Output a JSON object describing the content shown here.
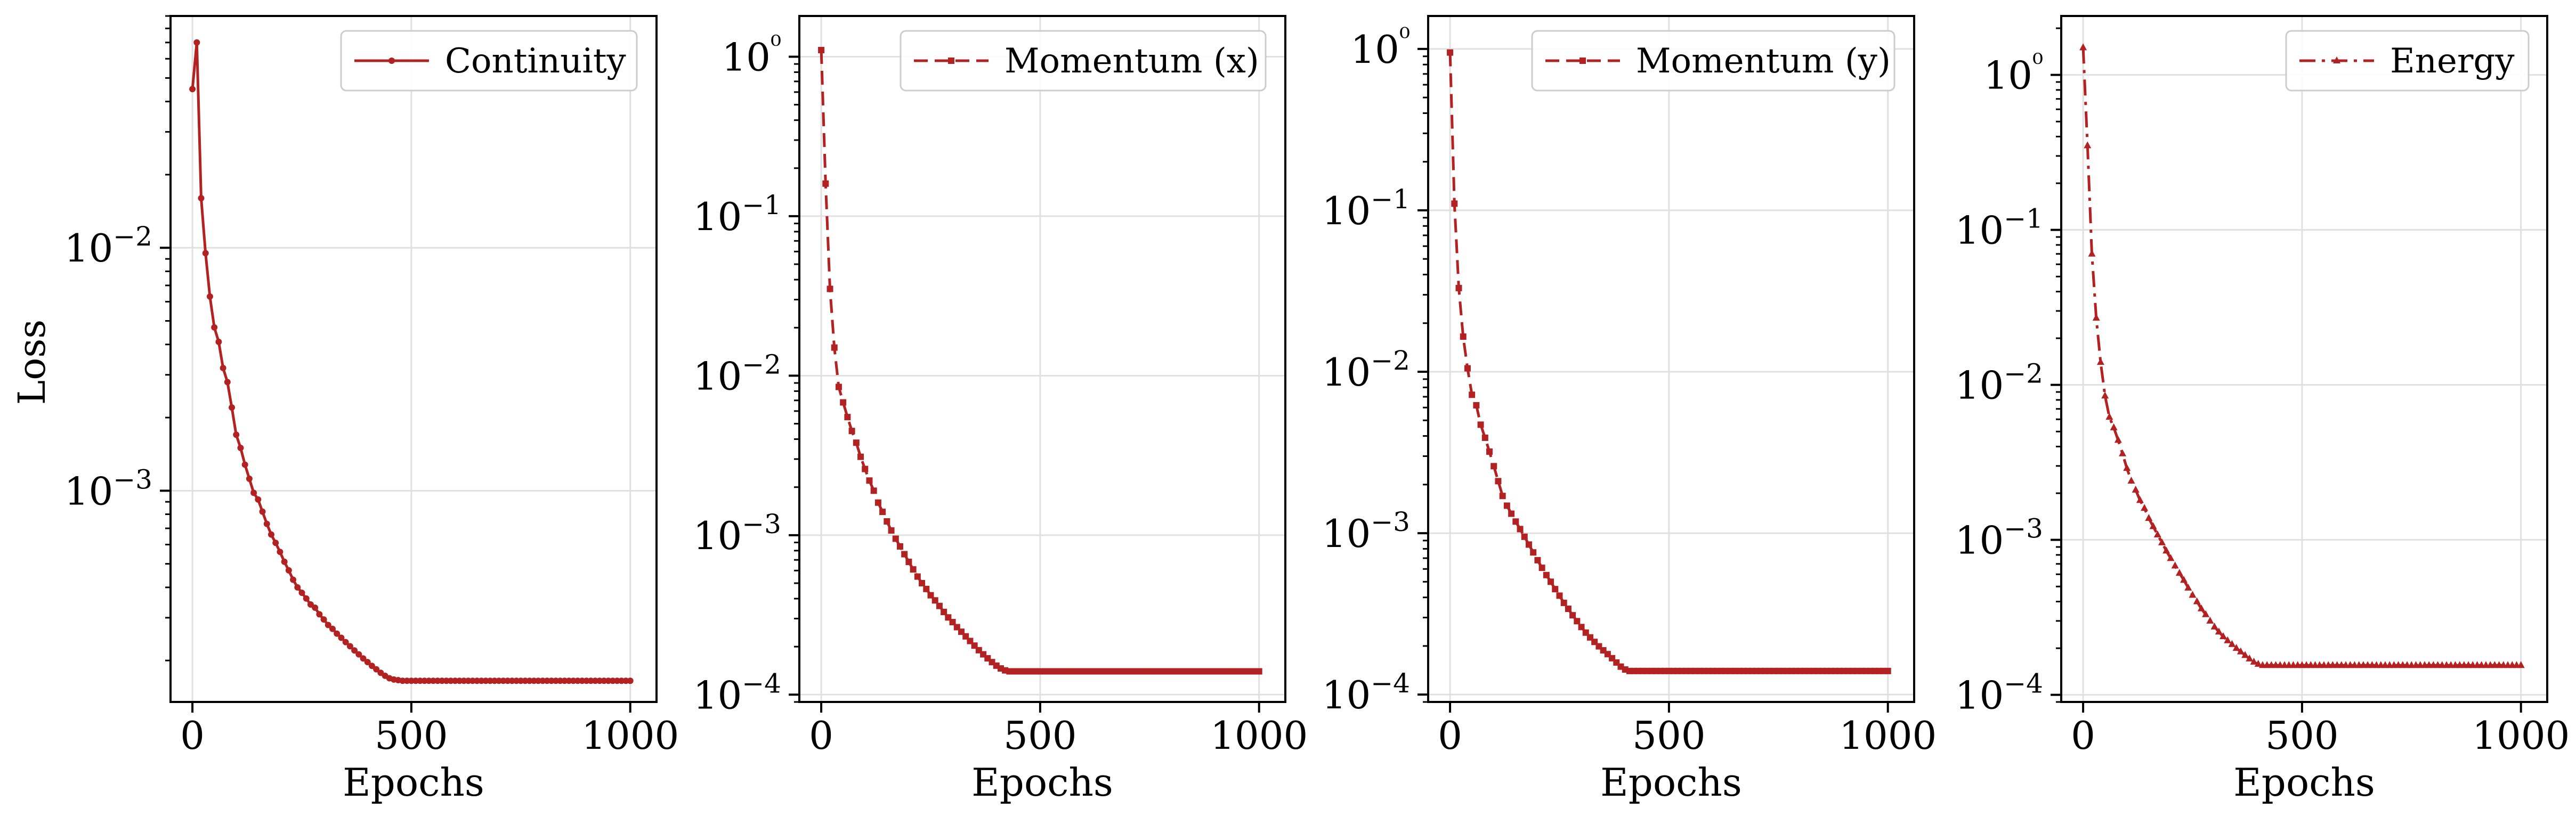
{
  "figure": {
    "colors": {
      "series": "#b22222",
      "grid": "#e0e0e0",
      "axis": "#000000"
    },
    "ylabel": "Loss",
    "xlabel": "Epochs",
    "xticks": [
      0,
      500,
      1000
    ]
  },
  "chart_data": [
    {
      "type": "line",
      "series": [
        {
          "name": "Continuity",
          "line_style": "solid",
          "marker": "circle",
          "x": [
            0,
            10,
            20,
            30,
            40,
            50,
            60,
            70,
            80,
            90,
            100,
            110,
            120,
            130,
            140,
            150,
            160,
            170,
            180,
            190,
            200,
            210,
            220,
            230,
            240,
            250,
            260,
            270,
            280,
            290,
            300,
            310,
            320,
            330,
            340,
            350,
            360,
            370,
            380,
            390,
            400,
            410,
            420,
            430,
            440,
            450,
            460,
            470,
            480,
            490,
            500,
            510,
            520,
            530,
            540,
            550,
            560,
            570,
            580,
            590,
            600,
            610,
            620,
            630,
            640,
            650,
            660,
            670,
            680,
            690,
            700,
            710,
            720,
            730,
            740,
            750,
            760,
            770,
            780,
            790,
            800,
            810,
            820,
            830,
            840,
            850,
            860,
            870,
            880,
            890,
            900,
            910,
            920,
            930,
            940,
            950,
            960,
            970,
            980,
            990,
            1000
          ],
          "y": [
            0.045,
            0.07,
            0.016,
            0.0095,
            0.0063,
            0.0047,
            0.0041,
            0.0032,
            0.0028,
            0.0022,
            0.0017,
            0.0015,
            0.00128,
            0.00112,
            0.00098,
            0.00092,
            0.00082,
            0.00073,
            0.00066,
            0.00061,
            0.00056,
            0.00051,
            0.00047,
            0.00043,
            0.0004,
            0.00038,
            0.00036,
            0.00034,
            0.00033,
            0.00031,
            0.000295,
            0.00028,
            0.00027,
            0.000258,
            0.000248,
            0.000238,
            0.000229,
            0.00022,
            0.000212,
            0.000204,
            0.000197,
            0.00019,
            0.000184,
            0.000178,
            0.000173,
            0.000169,
            0.000167,
            0.000166,
            0.000165,
            0.000165,
            0.000165,
            0.000165,
            0.000165,
            0.000165,
            0.000165,
            0.000165,
            0.000165,
            0.000165,
            0.000165,
            0.000165,
            0.000165,
            0.000165,
            0.000165,
            0.000165,
            0.000165,
            0.000165,
            0.000165,
            0.000165,
            0.000165,
            0.000165,
            0.000165,
            0.000165,
            0.000165,
            0.000165,
            0.000165,
            0.000165,
            0.000165,
            0.000165,
            0.000165,
            0.000165,
            0.000165,
            0.000165,
            0.000165,
            0.000165,
            0.000165,
            0.000165,
            0.000165,
            0.000165,
            0.000165,
            0.000165,
            0.000165,
            0.000165,
            0.000165,
            0.000165,
            0.000165,
            0.000165,
            0.000165,
            0.000165,
            0.000165,
            0.000165,
            0.000165
          ]
        }
      ],
      "xlim": [
        -50,
        1060
      ],
      "ylim": [
        0.000135,
        0.09
      ],
      "yscale": "log",
      "yticks": [
        0.001,
        0.01
      ],
      "ytick_labels": [
        "10−3",
        "10−2"
      ],
      "ylabel": "Loss",
      "xlabel": "Epochs",
      "grid": true,
      "legend": "top-right"
    },
    {
      "type": "line",
      "series": [
        {
          "name": "Momentum (x)",
          "line_style": "dashed",
          "marker": "square",
          "x": [
            0,
            10,
            20,
            30,
            40,
            50,
            60,
            70,
            80,
            90,
            100,
            110,
            120,
            130,
            140,
            150,
            160,
            170,
            180,
            190,
            200,
            210,
            220,
            230,
            240,
            250,
            260,
            270,
            280,
            290,
            300,
            310,
            320,
            330,
            340,
            350,
            360,
            370,
            380,
            390,
            400,
            410,
            420,
            430,
            440,
            450,
            460,
            470,
            480,
            490,
            500,
            510,
            520,
            530,
            540,
            550,
            560,
            570,
            580,
            590,
            600,
            610,
            620,
            630,
            640,
            650,
            660,
            670,
            680,
            690,
            700,
            710,
            720,
            730,
            740,
            750,
            760,
            770,
            780,
            790,
            800,
            810,
            820,
            830,
            840,
            850,
            860,
            870,
            880,
            890,
            900,
            910,
            920,
            930,
            940,
            950,
            960,
            970,
            980,
            990,
            1000
          ],
          "y": [
            1.1,
            0.16,
            0.035,
            0.015,
            0.0085,
            0.0068,
            0.0055,
            0.0045,
            0.0038,
            0.0031,
            0.0026,
            0.0022,
            0.0019,
            0.0016,
            0.0014,
            0.00122,
            0.00107,
            0.00095,
            0.00085,
            0.00076,
            0.00068,
            0.00061,
            0.00055,
            0.0005,
            0.00046,
            0.00042,
            0.00039,
            0.00036,
            0.00033,
            0.000305,
            0.000285,
            0.000265,
            0.000248,
            0.000232,
            0.000217,
            0.000203,
            0.00019,
            0.000179,
            0.000169,
            0.00016,
            0.000152,
            0.000146,
            0.000142,
            0.00014,
            0.00014,
            0.00014,
            0.00014,
            0.00014,
            0.00014,
            0.00014,
            0.00014,
            0.00014,
            0.00014,
            0.00014,
            0.00014,
            0.00014,
            0.00014,
            0.00014,
            0.00014,
            0.00014,
            0.00014,
            0.00014,
            0.00014,
            0.00014,
            0.00014,
            0.00014,
            0.00014,
            0.00014,
            0.00014,
            0.00014,
            0.00014,
            0.00014,
            0.00014,
            0.00014,
            0.00014,
            0.00014,
            0.00014,
            0.00014,
            0.00014,
            0.00014,
            0.00014,
            0.00014,
            0.00014,
            0.00014,
            0.00014,
            0.00014,
            0.00014,
            0.00014,
            0.00014,
            0.00014,
            0.00014,
            0.00014,
            0.00014,
            0.00014,
            0.00014,
            0.00014,
            0.00014,
            0.00014,
            0.00014,
            0.00014,
            0.00014
          ]
        }
      ],
      "xlim": [
        -50,
        1060
      ],
      "ylim": [
        9e-05,
        1.8
      ],
      "yscale": "log",
      "yticks": [
        0.0001,
        0.001,
        0.01,
        0.1,
        1
      ],
      "ytick_labels": [
        "10−4",
        "10−3",
        "10−2",
        "10−1",
        "10⁰"
      ],
      "xlabel": "Epochs",
      "grid": true,
      "legend": "top-right"
    },
    {
      "type": "line",
      "series": [
        {
          "name": "Momentum (y)",
          "line_style": "dashed",
          "marker": "square",
          "x": [
            0,
            10,
            20,
            30,
            40,
            50,
            60,
            70,
            80,
            90,
            100,
            110,
            120,
            130,
            140,
            150,
            160,
            170,
            180,
            190,
            200,
            210,
            220,
            230,
            240,
            250,
            260,
            270,
            280,
            290,
            300,
            310,
            320,
            330,
            340,
            350,
            360,
            370,
            380,
            390,
            400,
            410,
            420,
            430,
            440,
            450,
            460,
            470,
            480,
            490,
            500,
            510,
            520,
            530,
            540,
            550,
            560,
            570,
            580,
            590,
            600,
            610,
            620,
            630,
            640,
            650,
            660,
            670,
            680,
            690,
            700,
            710,
            720,
            730,
            740,
            750,
            760,
            770,
            780,
            790,
            800,
            810,
            820,
            830,
            840,
            850,
            860,
            870,
            880,
            890,
            900,
            910,
            920,
            930,
            940,
            950,
            960,
            970,
            980,
            990,
            1000
          ],
          "y": [
            0.95,
            0.11,
            0.033,
            0.0165,
            0.0105,
            0.0072,
            0.0062,
            0.0047,
            0.0039,
            0.0032,
            0.0026,
            0.0021,
            0.0017,
            0.00148,
            0.00132,
            0.00118,
            0.00106,
            0.00095,
            0.00085,
            0.00076,
            0.00068,
            0.00061,
            0.00055,
            0.0005,
            0.00045,
            0.00041,
            0.00037,
            0.00034,
            0.00031,
            0.000285,
            0.000262,
            0.000242,
            0.000226,
            0.000212,
            0.000199,
            0.000188,
            0.000178,
            0.000168,
            0.000158,
            0.000149,
            0.000143,
            0.00014,
            0.00014,
            0.00014,
            0.00014,
            0.00014,
            0.00014,
            0.00014,
            0.00014,
            0.00014,
            0.00014,
            0.00014,
            0.00014,
            0.00014,
            0.00014,
            0.00014,
            0.00014,
            0.00014,
            0.00014,
            0.00014,
            0.00014,
            0.00014,
            0.00014,
            0.00014,
            0.00014,
            0.00014,
            0.00014,
            0.00014,
            0.00014,
            0.00014,
            0.00014,
            0.00014,
            0.00014,
            0.00014,
            0.00014,
            0.00014,
            0.00014,
            0.00014,
            0.00014,
            0.00014,
            0.00014,
            0.00014,
            0.00014,
            0.00014,
            0.00014,
            0.00014,
            0.00014,
            0.00014,
            0.00014,
            0.00014,
            0.00014,
            0.00014,
            0.00014,
            0.00014,
            0.00014,
            0.00014,
            0.00014,
            0.00014,
            0.00014,
            0.00014,
            0.00014
          ]
        }
      ],
      "xlim": [
        -50,
        1060
      ],
      "ylim": [
        9e-05,
        1.6
      ],
      "yscale": "log",
      "yticks": [
        0.0001,
        0.001,
        0.01,
        0.1,
        1
      ],
      "ytick_labels": [
        "10−4",
        "10−3",
        "10−2",
        "10−1",
        "10⁰"
      ],
      "xlabel": "Epochs",
      "grid": true,
      "legend": "top-right"
    },
    {
      "type": "line",
      "series": [
        {
          "name": "Energy",
          "line_style": "dashdot",
          "marker": "triangle",
          "x": [
            0,
            10,
            20,
            30,
            40,
            50,
            60,
            70,
            80,
            90,
            100,
            110,
            120,
            130,
            140,
            150,
            160,
            170,
            180,
            190,
            200,
            210,
            220,
            230,
            240,
            250,
            260,
            270,
            280,
            290,
            300,
            310,
            320,
            330,
            340,
            350,
            360,
            370,
            380,
            390,
            400,
            410,
            420,
            430,
            440,
            450,
            460,
            470,
            480,
            490,
            500,
            510,
            520,
            530,
            540,
            550,
            560,
            570,
            580,
            590,
            600,
            610,
            620,
            630,
            640,
            650,
            660,
            670,
            680,
            690,
            700,
            710,
            720,
            730,
            740,
            750,
            760,
            770,
            780,
            790,
            800,
            810,
            820,
            830,
            840,
            850,
            860,
            870,
            880,
            890,
            900,
            910,
            920,
            930,
            940,
            950,
            960,
            970,
            980,
            990,
            1000
          ],
          "y": [
            1.5,
            0.35,
            0.07,
            0.027,
            0.014,
            0.0085,
            0.0062,
            0.0053,
            0.0044,
            0.0036,
            0.0029,
            0.0024,
            0.0021,
            0.0018,
            0.0016,
            0.00138,
            0.00122,
            0.00108,
            0.00096,
            0.00085,
            0.00076,
            0.00068,
            0.00061,
            0.00055,
            0.00049,
            0.00044,
            0.0004,
            0.00036,
            0.00033,
            0.0003,
            0.000275,
            0.000255,
            0.000238,
            0.000224,
            0.000212,
            0.0002,
            0.00019,
            0.00018,
            0.000171,
            0.000163,
            0.000158,
            0.000155,
            0.000155,
            0.000155,
            0.000155,
            0.000155,
            0.000155,
            0.000155,
            0.000155,
            0.000155,
            0.000155,
            0.000155,
            0.000155,
            0.000155,
            0.000155,
            0.000155,
            0.000155,
            0.000155,
            0.000155,
            0.000155,
            0.000155,
            0.000155,
            0.000155,
            0.000155,
            0.000155,
            0.000155,
            0.000155,
            0.000155,
            0.000155,
            0.000155,
            0.000155,
            0.000155,
            0.000155,
            0.000155,
            0.000155,
            0.000155,
            0.000155,
            0.000155,
            0.000155,
            0.000155,
            0.000155,
            0.000155,
            0.000155,
            0.000155,
            0.000155,
            0.000155,
            0.000155,
            0.000155,
            0.000155,
            0.000155,
            0.000155,
            0.000155,
            0.000155,
            0.000155,
            0.000155,
            0.000155,
            0.000155,
            0.000155,
            0.000155,
            0.000155,
            0.000155
          ]
        }
      ],
      "xlim": [
        -50,
        1060
      ],
      "ylim": [
        9e-05,
        2.4
      ],
      "yscale": "log",
      "yticks": [
        0.0001,
        0.001,
        0.01,
        0.1,
        1
      ],
      "ytick_labels": [
        "10−4",
        "10−3",
        "10−2",
        "10−1",
        "10⁰"
      ],
      "xlabel": "Epochs",
      "grid": true,
      "legend": "top-right"
    }
  ]
}
